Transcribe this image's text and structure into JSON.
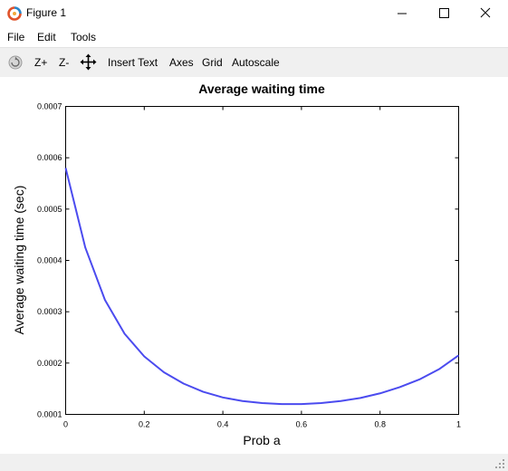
{
  "window": {
    "title": "Figure 1",
    "icon": "octave-icon"
  },
  "menu": {
    "items": [
      "File",
      "Edit",
      "Tools"
    ]
  },
  "toolbar": {
    "rotate_icon": "rotate-icon",
    "zoom_in": "Z+",
    "zoom_out": "Z-",
    "pan_icon": "pan-icon",
    "insert_text": "Insert Text",
    "axes": "Axes",
    "grid": "Grid",
    "autoscale": "Autoscale"
  },
  "chart_data": {
    "type": "line",
    "title": "Average waiting time",
    "xlabel": "Prob a",
    "ylabel": "Average waiting time (sec)",
    "xlim": [
      0,
      1
    ],
    "ylim": [
      0.0001,
      0.0007
    ],
    "xticks": [
      "0",
      "0.2",
      "0.4",
      "0.6",
      "0.8",
      "1"
    ],
    "yticks": [
      "0.0001",
      "0.0002",
      "0.0003",
      "0.0004",
      "0.0005",
      "0.0006",
      "0.0007"
    ],
    "grid": false,
    "series": [
      {
        "color": "#4b4bef",
        "x": [
          0.0,
          0.05,
          0.1,
          0.15,
          0.2,
          0.25,
          0.3,
          0.35,
          0.4,
          0.45,
          0.5,
          0.55,
          0.6,
          0.65,
          0.7,
          0.75,
          0.8,
          0.85,
          0.9,
          0.95,
          1.0
        ],
        "y": [
          0.00058,
          0.000425,
          0.000323,
          0.000257,
          0.000213,
          0.000182,
          0.00016,
          0.000144,
          0.000133,
          0.000126,
          0.000122,
          0.00012,
          0.00012,
          0.000122,
          0.000126,
          0.000132,
          0.000141,
          0.000153,
          0.000168,
          0.000188,
          0.000215
        ]
      }
    ]
  }
}
